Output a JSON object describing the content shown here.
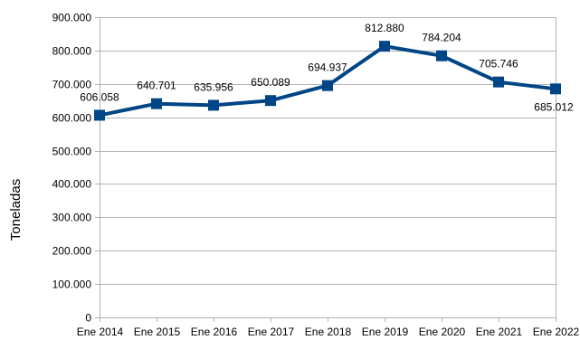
{
  "chart_data": {
    "type": "line",
    "title": "",
    "xlabel": "",
    "ylabel": "Toneladas",
    "ylim": [
      0,
      900000
    ],
    "yticks": [
      0,
      100000,
      200000,
      300000,
      400000,
      500000,
      600000,
      700000,
      800000,
      900000
    ],
    "ytick_labels": [
      "0",
      "100.000",
      "200.000",
      "300.000",
      "400.000",
      "500.000",
      "600.000",
      "700.000",
      "800.000",
      "900.000"
    ],
    "categories": [
      "Ene 2014",
      "Ene 2015",
      "Ene 2016",
      "Ene 2017",
      "Ene 2018",
      "Ene 2019",
      "Ene 2020",
      "Ene 2021",
      "Ene 2022"
    ],
    "values": [
      606058,
      640701,
      635956,
      650089,
      694937,
      812880,
      784204,
      705746,
      685012
    ],
    "value_labels": [
      "606.058",
      "640.701",
      "635.956",
      "650.089",
      "694.937",
      "812.880",
      "784.204",
      "705.746",
      "685.012"
    ],
    "series_color": "#004586",
    "grid": true,
    "legend": "none",
    "marker": "square"
  }
}
